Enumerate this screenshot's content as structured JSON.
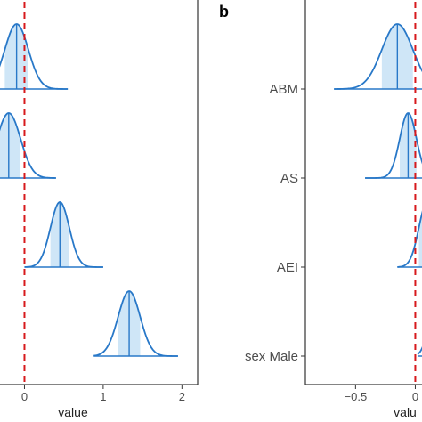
{
  "chart_data": [
    {
      "type": "ridgeline",
      "panel_label": "",
      "xlabel": "value",
      "ylabel": "",
      "xlim": [
        -0.65,
        2.2
      ],
      "x_ticks": [
        0,
        1,
        2
      ],
      "x_tick_labels": [
        "0",
        "1",
        "2"
      ],
      "reference_line": 0,
      "categories": [
        "",
        "",
        "",
        ""
      ],
      "series": [
        {
          "mean": -0.1,
          "sd": 0.15,
          "min": -0.65,
          "max": 0.55
        },
        {
          "mean": -0.2,
          "sd": 0.15,
          "min": -0.65,
          "max": 0.4
        },
        {
          "mean": 0.45,
          "sd": 0.12,
          "min": 0.0,
          "max": 1.0
        },
        {
          "mean": 1.33,
          "sd": 0.14,
          "min": 0.88,
          "max": 1.95
        }
      ]
    },
    {
      "type": "ridgeline",
      "panel_label": "b",
      "xlabel": "valu",
      "ylabel": "",
      "xlim": [
        -0.92,
        0.25
      ],
      "x_ticks": [
        -0.5,
        0
      ],
      "x_tick_labels": [
        "−0.5",
        "0"
      ],
      "reference_line": 0,
      "categories": [
        "ABM",
        "AS",
        "AEI",
        "sex Male"
      ],
      "series": [
        {
          "mean": -0.15,
          "sd": 0.13,
          "min": -0.68,
          "max": 0.25
        },
        {
          "mean": -0.06,
          "sd": 0.07,
          "min": -0.42,
          "max": 0.25
        },
        {
          "mean": 0.1,
          "sd": 0.07,
          "min": -0.15,
          "max": 0.25
        },
        {
          "mean": 0.18,
          "sd": 0.06,
          "min": 0.02,
          "max": 0.25
        }
      ]
    }
  ],
  "colors": {
    "curve": "#2878c8",
    "fill": "#cfe6f7",
    "reference": "#d7191c",
    "frame": "#333333"
  }
}
